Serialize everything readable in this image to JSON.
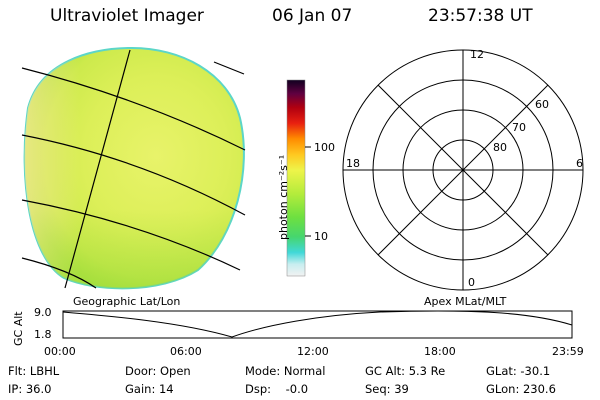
{
  "header": {
    "title": "Ultraviolet Imager",
    "date": "06 Jan 07",
    "time": "23:57:38 UT"
  },
  "colorbar": {
    "unit_label": "photon cm⁻²s⁻¹",
    "tick_100": "100",
    "tick_10": "10"
  },
  "polar_plot": {
    "mlt_top": "12",
    "mlt_left": "18",
    "mlt_right": "6",
    "mlt_bottom": "0",
    "lat_60": "60",
    "lat_70": "70",
    "lat_80": "80"
  },
  "captions": {
    "left": "Geographic Lat/Lon",
    "right": "Apex MLat/MLT"
  },
  "altitude_plot": {
    "ylabel": "GC Alt",
    "y_max": "9.0",
    "y_min": "1.8",
    "x_ticks": [
      "00:00",
      "06:00",
      "12:00",
      "18:00",
      "23:59"
    ]
  },
  "info": {
    "flt": "Flt: LBHL",
    "ip": "IP: 36.0",
    "door": "Door: Open",
    "gain": "Gain: 14",
    "mode": "Mode: Normal",
    "dsp": "Dsp:    -0.0",
    "gc_alt": "GC Alt: 5.3 Re",
    "seq": "Seq: 39",
    "glat": "GLat: -30.1",
    "glon": "GLon: 230.6"
  },
  "colors": {
    "disk_main": "#dff05a",
    "disk_edge": "#f0ec9a",
    "disk_green": "#b6e646"
  }
}
